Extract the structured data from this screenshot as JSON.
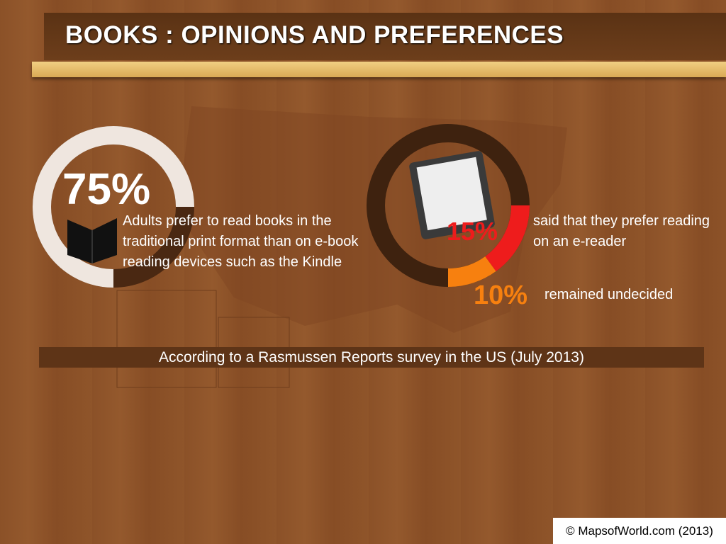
{
  "title": "BOOKS : OPINIONS AND PREFERENCES",
  "stats": [
    {
      "value": 75,
      "label": "75%",
      "color": "#efe6df",
      "text": "Adults prefer to read books in the traditional print format than on e-book reading devices such as the Kindle"
    },
    {
      "value": 15,
      "label": "15%",
      "color": "#ee1c1c",
      "text": "said that they prefer reading on an e-reader"
    },
    {
      "value": 10,
      "label": "10%",
      "color": "#f7800f",
      "text": "remained undecided"
    }
  ],
  "source": "According to a Rasmussen Reports survey in the US (July 2013)",
  "credit": "© MapsofWorld.com (2013)"
}
